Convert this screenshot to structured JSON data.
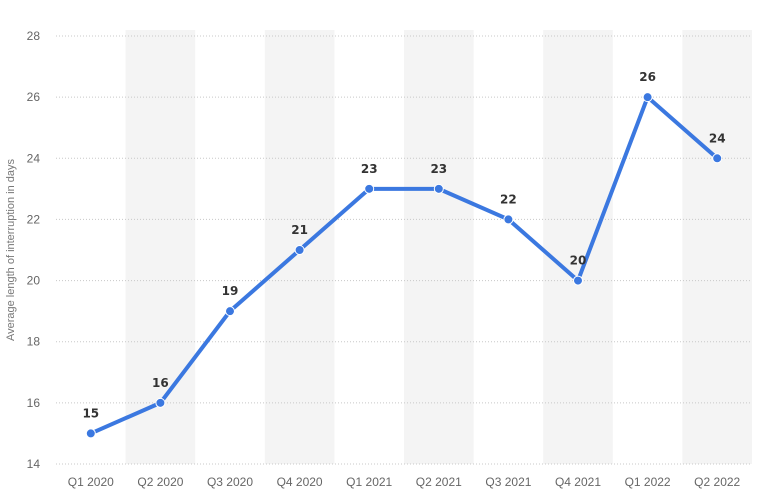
{
  "chart_data": {
    "type": "line",
    "categories": [
      "Q1 2020",
      "Q2 2020",
      "Q3 2020",
      "Q4 2020",
      "Q1 2021",
      "Q2 2021",
      "Q3 2021",
      "Q4 2021",
      "Q1 2022",
      "Q2 2022"
    ],
    "series": [
      {
        "values": [
          15,
          16,
          19,
          21,
          23,
          23,
          22,
          20,
          26,
          24
        ]
      }
    ],
    "title": "",
    "xlabel": "",
    "ylabel": "Average length of interruption in days",
    "ylim": [
      14,
      28
    ],
    "yticks": [
      14,
      16,
      18,
      20,
      22,
      24,
      26,
      28
    ],
    "grid": true,
    "line_color": "#3b78e0",
    "band_color": "#f4f4f4"
  }
}
